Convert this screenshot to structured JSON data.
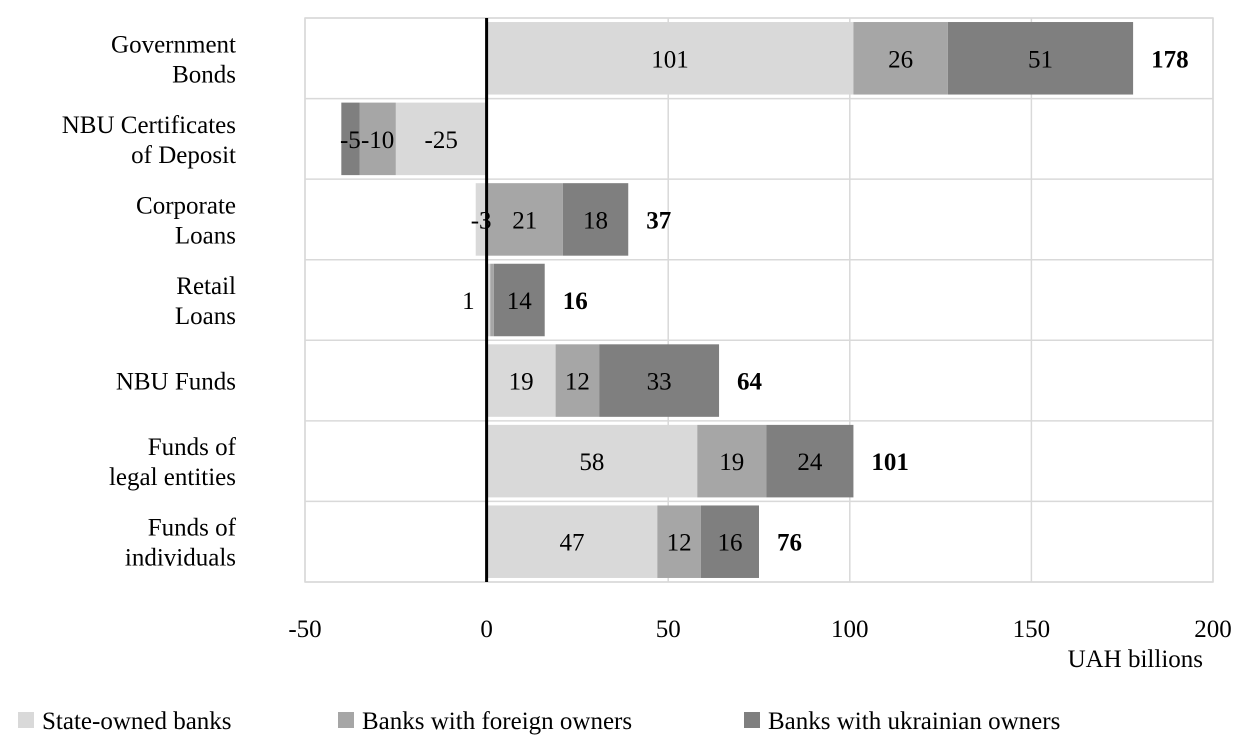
{
  "chart_data": {
    "type": "bar",
    "orientation": "horizontal",
    "stacked": true,
    "categories": [
      [
        "Government",
        "Bonds"
      ],
      [
        "NBU Certificates",
        "of Deposit"
      ],
      [
        "Corporate",
        "Loans"
      ],
      [
        "Retail",
        "Loans"
      ],
      [
        "NBU Funds"
      ],
      [
        "Funds of",
        "legal entities"
      ],
      [
        "Funds of",
        "individuals"
      ]
    ],
    "series": [
      {
        "name": "State-owned banks",
        "color": "#d9d9d9",
        "values": [
          101,
          -25,
          -3,
          1,
          19,
          58,
          47
        ],
        "labels": [
          "101",
          "-25",
          "-3",
          "",
          "19",
          "58",
          "47"
        ]
      },
      {
        "name": "Banks with foreign owners",
        "color": "#a6a6a6",
        "values": [
          26,
          -10,
          21,
          1,
          12,
          19,
          12
        ],
        "labels": [
          "26",
          "-10",
          "21",
          "",
          "12",
          "19",
          "12"
        ]
      },
      {
        "name": "Banks with ukrainian owners",
        "color": "#7f7f7f",
        "values": [
          51,
          -5,
          18,
          14,
          33,
          24,
          16
        ],
        "labels": [
          "51",
          "-5",
          "18",
          "14",
          "33",
          "24",
          "16"
        ]
      }
    ],
    "totals": [
      "178",
      "",
      "37",
      "16",
      "64",
      "101",
      "76"
    ],
    "extra_labels": [
      {
        "category": 3,
        "text": "1"
      }
    ],
    "xlim": [
      -50,
      200
    ],
    "xticks": [
      "-50",
      "0",
      "50",
      "100",
      "150",
      "200"
    ],
    "xlabel": "UAH billions",
    "title": "",
    "grid": "vertical",
    "legend": "bottom"
  }
}
